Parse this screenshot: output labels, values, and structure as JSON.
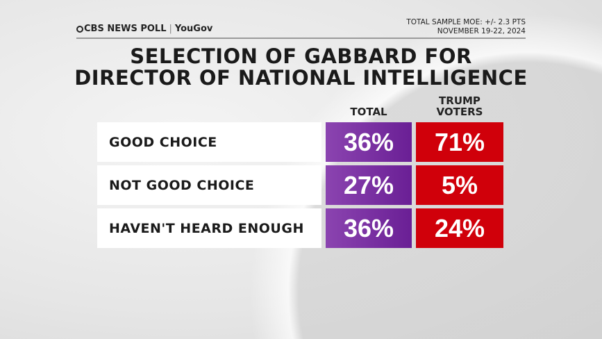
{
  "header": {
    "logo_text": "CBS NEWS POLL",
    "partner": "YouGov",
    "moe": "TOTAL SAMPLE MOE: +/- 2.3 PTS",
    "dates": "NOVEMBER 19-22, 2024"
  },
  "colors": {
    "total": "#7a32a3",
    "trump_voters": "#d0000a"
  },
  "chart_data": {
    "type": "table",
    "title": "SELECTION OF GABBARD FOR DIRECTOR OF NATIONAL INTELLIGENCE",
    "title_lines": [
      "SELECTION OF GABBARD FOR",
      "DIRECTOR OF NATIONAL INTELLIGENCE"
    ],
    "columns": [
      "TOTAL",
      "TRUMP VOTERS"
    ],
    "rows": [
      {
        "label": "GOOD CHOICE",
        "values": [
          "36%",
          "71%"
        ]
      },
      {
        "label": "NOT GOOD CHOICE",
        "values": [
          "27%",
          "5%"
        ]
      },
      {
        "label": "HAVEN'T HEARD ENOUGH",
        "values": [
          "36%",
          "24%"
        ]
      }
    ]
  }
}
